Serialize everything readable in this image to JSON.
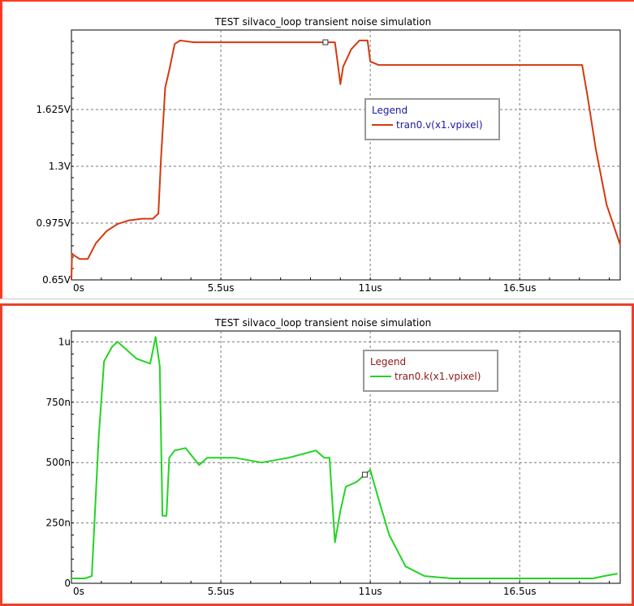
{
  "chart_data": [
    {
      "type": "line",
      "title": "TEST  silvaco_loop transient noise simulation",
      "xlabel": "",
      "ylabel": "",
      "xlim": [
        0,
        20.2
      ],
      "ylim": [
        0.65,
        2.08
      ],
      "x_ticks": [
        0,
        5.5,
        11,
        16.5
      ],
      "x_tick_labels": [
        "0s",
        "5.5us",
        "11us",
        "16.5us"
      ],
      "y_ticks": [
        0.65,
        0.975,
        1.3,
        1.625
      ],
      "y_tick_labels": [
        "0.65V",
        "0.975V",
        "1.3V",
        "1.625V"
      ],
      "grid": true,
      "legend_title": "Legend",
      "legend_position": "center-right",
      "series": [
        {
          "name": "tran0.v(x1.vpixel)",
          "color": "#d43a0e",
          "x": [
            0,
            0.02,
            0.1,
            0.3,
            0.6,
            0.9,
            1.3,
            1.7,
            2.1,
            2.6,
            3.0,
            3.2,
            3.3,
            3.45,
            3.6,
            3.8,
            4.0,
            4.5,
            5.5,
            7,
            8,
            9,
            9.7,
            9.8,
            9.9,
            10.0,
            10.3,
            10.6,
            10.75,
            10.9,
            11.0,
            11.3,
            12,
            14,
            16.5,
            18,
            18.8,
            19.0,
            19.3,
            19.7,
            20.2
          ],
          "y": [
            0.65,
            0.8,
            0.79,
            0.77,
            0.77,
            0.86,
            0.93,
            0.97,
            0.99,
            1.0,
            1.0,
            1.03,
            1.35,
            1.75,
            1.85,
            2.0,
            2.02,
            2.01,
            2.01,
            2.01,
            2.01,
            2.01,
            2.01,
            1.89,
            1.77,
            1.87,
            1.97,
            2.02,
            2.02,
            2.02,
            1.9,
            1.88,
            1.88,
            1.88,
            1.88,
            1.88,
            1.88,
            1.7,
            1.4,
            1.08,
            0.85
          ]
        }
      ]
    },
    {
      "type": "line",
      "title": "TEST  silvaco_loop transient noise simulation",
      "xlabel": "",
      "ylabel": "",
      "xlim": [
        0,
        20.2
      ],
      "ylim": [
        0,
        1.045
      ],
      "x_ticks": [
        0,
        5.5,
        11,
        16.5
      ],
      "x_tick_labels": [
        "0s",
        "5.5us",
        "11us",
        "16.5us"
      ],
      "y_ticks": [
        0,
        0.25,
        0.5,
        0.75,
        1.0
      ],
      "y_tick_labels": [
        "0",
        "250n",
        "500n",
        "750n",
        "1u"
      ],
      "grid": true,
      "legend_title": "Legend",
      "legend_position": "center-right",
      "series": [
        {
          "name": "tran0.k(x1.vpixel)",
          "color": "#22d422",
          "x": [
            0,
            0.5,
            0.75,
            1.0,
            1.2,
            1.5,
            1.7,
            2.0,
            2.4,
            2.9,
            3.1,
            3.25,
            3.35,
            3.5,
            3.6,
            3.8,
            4.2,
            4.7,
            5.0,
            5.5,
            6,
            7,
            8,
            9,
            9.3,
            9.5,
            9.7,
            9.9,
            10.1,
            10.5,
            10.8,
            11.0,
            11.3,
            11.7,
            12.3,
            13,
            14,
            16,
            18,
            19.2,
            19.6,
            20.1
          ],
          "y": [
            0.02,
            0.02,
            0.03,
            0.6,
            0.92,
            0.98,
            1.0,
            0.97,
            0.93,
            0.91,
            1.02,
            0.9,
            0.28,
            0.28,
            0.52,
            0.55,
            0.56,
            0.49,
            0.52,
            0.52,
            0.52,
            0.5,
            0.52,
            0.55,
            0.52,
            0.52,
            0.17,
            0.3,
            0.4,
            0.42,
            0.45,
            0.47,
            0.35,
            0.2,
            0.07,
            0.03,
            0.02,
            0.02,
            0.02,
            0.02,
            0.03,
            0.04
          ]
        }
      ]
    }
  ]
}
